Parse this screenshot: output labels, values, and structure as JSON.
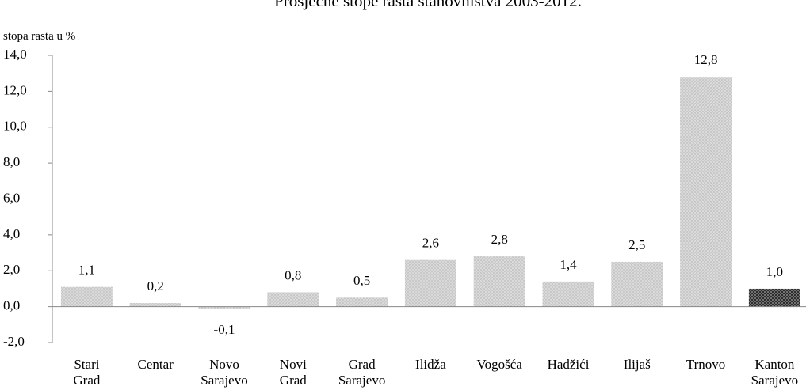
{
  "chart_data": {
    "type": "bar",
    "title": "Prosječne stope rasta stanovništva 2003-2012.",
    "y_label": "stopa rasta u %",
    "categories": [
      "Stari Grad",
      "Centar",
      "Novo Sarajevo",
      "Novi Grad",
      "Grad Sarajevo",
      "Ilidža",
      "Vogošća",
      "Hadžići",
      "Ilijaš",
      "Trnovo",
      "Kanton Sarajevo"
    ],
    "values": [
      1.1,
      0.2,
      -0.1,
      0.8,
      0.5,
      2.6,
      2.8,
      1.4,
      2.5,
      12.8,
      1.0
    ],
    "value_labels": [
      "1,1",
      "0,2",
      "-0,1",
      "0,8",
      "0,5",
      "2,6",
      "2,8",
      "1,4",
      "2,5",
      "12,8",
      "1,0"
    ],
    "colors": [
      "#c8c8c8",
      "#c8c8c8",
      "#c8c8c8",
      "#c8c8c8",
      "#c8c8c8",
      "#c8c8c8",
      "#c8c8c8",
      "#c8c8c8",
      "#c8c8c8",
      "#c8c8c8",
      "#2e2e2e"
    ],
    "ylim": [
      -2,
      14
    ],
    "yticks": [
      {
        "value": -2,
        "label": "-2,0"
      },
      {
        "value": 0,
        "label": "0,0"
      },
      {
        "value": 2,
        "label": "2,0"
      },
      {
        "value": 4,
        "label": "4,0"
      },
      {
        "value": 6,
        "label": "6,0"
      },
      {
        "value": 8,
        "label": "8,0"
      },
      {
        "value": 10,
        "label": "10,0"
      },
      {
        "value": 12,
        "label": "12,0"
      },
      {
        "value": 14,
        "label": "14,0"
      }
    ],
    "grid": false
  }
}
